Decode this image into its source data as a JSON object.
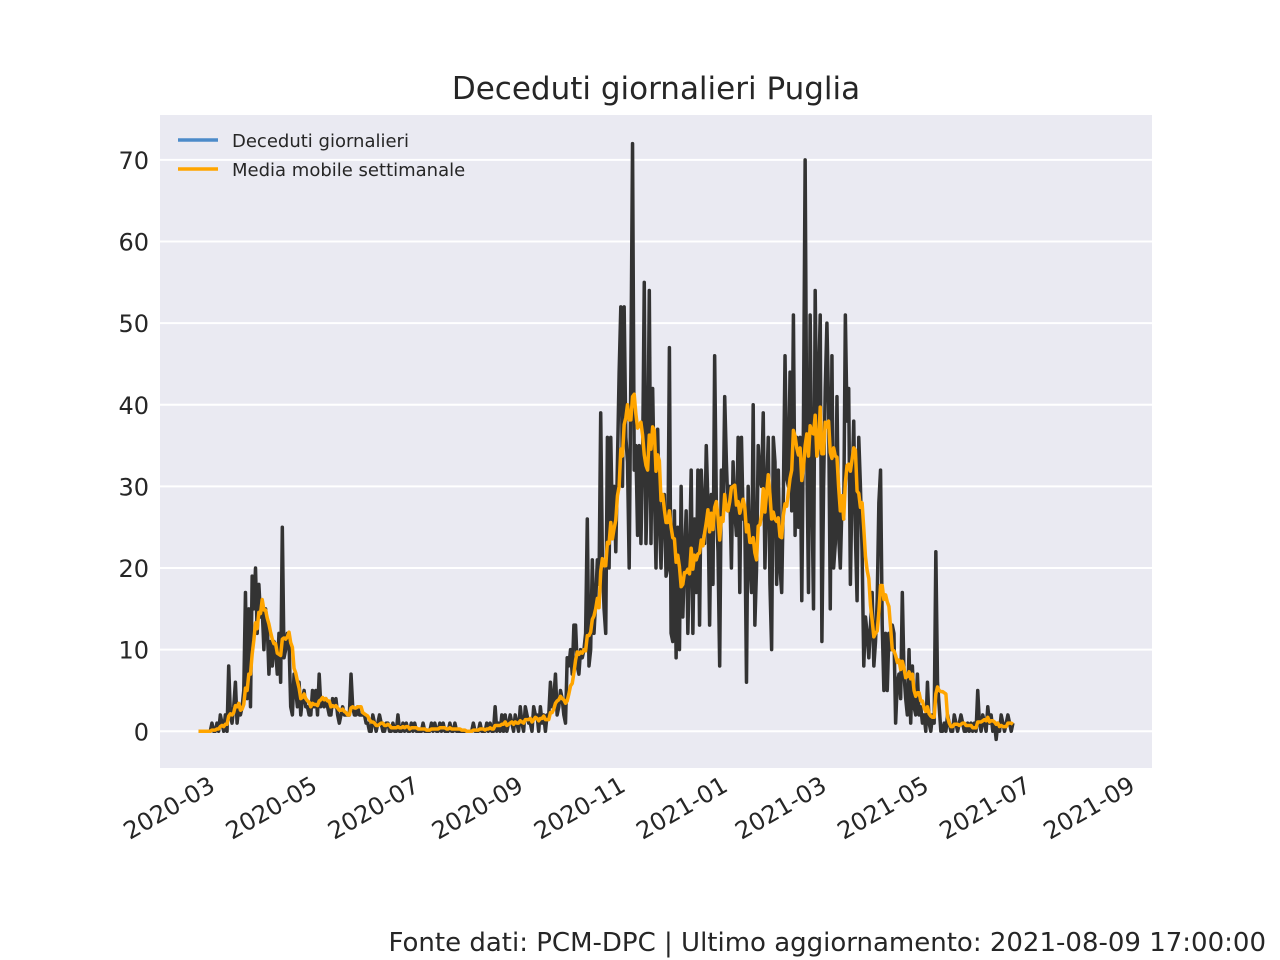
{
  "chart_data": {
    "type": "line",
    "title": "Deceduti giornalieri Puglia",
    "xlabel": "",
    "ylabel": "",
    "x_start": "2020-02-24",
    "x_end": "2021-08-09",
    "xlim": [
      "2020-02-01",
      "2021-09-15"
    ],
    "ylim": [
      -4.5,
      75.5
    ],
    "x_ticks": [
      "2020-03",
      "2020-05",
      "2020-07",
      "2020-09",
      "2020-11",
      "2021-01",
      "2021-03",
      "2021-05",
      "2021-07",
      "2021-09"
    ],
    "y_ticks": [
      0,
      10,
      20,
      30,
      40,
      50,
      60,
      70
    ],
    "grid": true,
    "legend_position": "top-left",
    "series": [
      {
        "name": "Deceduti giornalieri",
        "legend_color": "#4c8bc9",
        "line_color": "#333333",
        "values": [
          0,
          0,
          0,
          0,
          0,
          0,
          0,
          0,
          1,
          0,
          0,
          1,
          0,
          2,
          1,
          0,
          2,
          0,
          8,
          2,
          1,
          3,
          6,
          1,
          3,
          2,
          3,
          5,
          17,
          4,
          15,
          3,
          19,
          15,
          20,
          12,
          18,
          14,
          15,
          10,
          15,
          13,
          7,
          11,
          8,
          11,
          10,
          7,
          12,
          6,
          25,
          9,
          10,
          12,
          11,
          3,
          2,
          7,
          5,
          3,
          6,
          2,
          4,
          5,
          3,
          3,
          2,
          2,
          5,
          3,
          5,
          2,
          7,
          3,
          4,
          3,
          4,
          3,
          2,
          2,
          4,
          3,
          4,
          2,
          1,
          2,
          3,
          2,
          2,
          2,
          2,
          7,
          3,
          2,
          2,
          3,
          2,
          2,
          2,
          2,
          1,
          1,
          0,
          0,
          2,
          1,
          0,
          1,
          2,
          1,
          0,
          0,
          1,
          1,
          0,
          0,
          1,
          0,
          0,
          2,
          0,
          0,
          1,
          0,
          1,
          0,
          0,
          1,
          0,
          1,
          0,
          0,
          0,
          0,
          1,
          0,
          0,
          0,
          0,
          1,
          0,
          1,
          0,
          0,
          1,
          0,
          1,
          0,
          0,
          0,
          1,
          0,
          0,
          1,
          0,
          0,
          0,
          0,
          0,
          0,
          0,
          0,
          0,
          0,
          1,
          0,
          0,
          0,
          1,
          0,
          0,
          0,
          1,
          0,
          1,
          0,
          0,
          3,
          0,
          1,
          0,
          2,
          0,
          2,
          0,
          1,
          2,
          1,
          0,
          2,
          1,
          0,
          3,
          1,
          0,
          3,
          2,
          1,
          1,
          0,
          3,
          2,
          2,
          0,
          3,
          1,
          2,
          0,
          2,
          2,
          6,
          3,
          4,
          7,
          2,
          3,
          5,
          4,
          2,
          1,
          9,
          8,
          10,
          7,
          13,
          13,
          8,
          7,
          10,
          9,
          10,
          12,
          26,
          8,
          10,
          21,
          12,
          16,
          21,
          18,
          39,
          21,
          15,
          12,
          36,
          20,
          36,
          25,
          30,
          22,
          33,
          44,
          52,
          30,
          52,
          36,
          33,
          20,
          44,
          72,
          32,
          35,
          24,
          35,
          23,
          33,
          55,
          23,
          31,
          54,
          23,
          42,
          30,
          20,
          37,
          26,
          20,
          28,
          29,
          19,
          20,
          47,
          12,
          11,
          27,
          9,
          25,
          10,
          30,
          14,
          21,
          27,
          12,
          21,
          32,
          12,
          26,
          17,
          32,
          13,
          32,
          27,
          23,
          35,
          28,
          13,
          29,
          18,
          46,
          28,
          22,
          8,
          32,
          26,
          41,
          33,
          27,
          30,
          20,
          33,
          27,
          24,
          36,
          17,
          36,
          26,
          26,
          6,
          30,
          21,
          17,
          40,
          13,
          20,
          35,
          31,
          30,
          39,
          20,
          29,
          36,
          18,
          10,
          36,
          33,
          18,
          32,
          20,
          17,
          29,
          46,
          31,
          30,
          44,
          27,
          51,
          24,
          36,
          25,
          36,
          16,
          38,
          70,
          34,
          17,
          51,
          30,
          15,
          54,
          35,
          42,
          51,
          11,
          30,
          42,
          50,
          40,
          15,
          46,
          20,
          23,
          41,
          24,
          20,
          28,
          26,
          51,
          38,
          42,
          18,
          30,
          38,
          24,
          16,
          36,
          30,
          22,
          8,
          14,
          12,
          9,
          13,
          17,
          8,
          11,
          16,
          28,
          32,
          13,
          5,
          12,
          5,
          12,
          10,
          13,
          12,
          1,
          6,
          7,
          4,
          17,
          7,
          4,
          2,
          10,
          1,
          8,
          3,
          2,
          7,
          2,
          3,
          1,
          2,
          0,
          6,
          1,
          0,
          2,
          1,
          22,
          6,
          3,
          0,
          0,
          1,
          0,
          2,
          1,
          0,
          0,
          2,
          1,
          0,
          1,
          2,
          1,
          0,
          0,
          1,
          0,
          1,
          0,
          1,
          0,
          5,
          1,
          0,
          2,
          1,
          0,
          3,
          1,
          2,
          0,
          1,
          -1,
          1,
          0,
          2,
          1,
          0,
          1,
          2,
          1,
          0,
          1
        ]
      },
      {
        "name": "Media mobile settimanale",
        "line_color": "#ffa500",
        "values": "computed: 7-day trailing average of Deceduti giornalieri"
      }
    ]
  },
  "footer": "Fonte dati: PCM-DPC | Ultimo aggiornamento: 2021-08-09 17:00:00",
  "colors": {
    "plot_background": "#eaeaf2",
    "grid": "#ffffff",
    "text": "#262626",
    "daily_line": "#333333",
    "moving_average": "#ffa500",
    "legend_daily": "#4c8bc9"
  }
}
